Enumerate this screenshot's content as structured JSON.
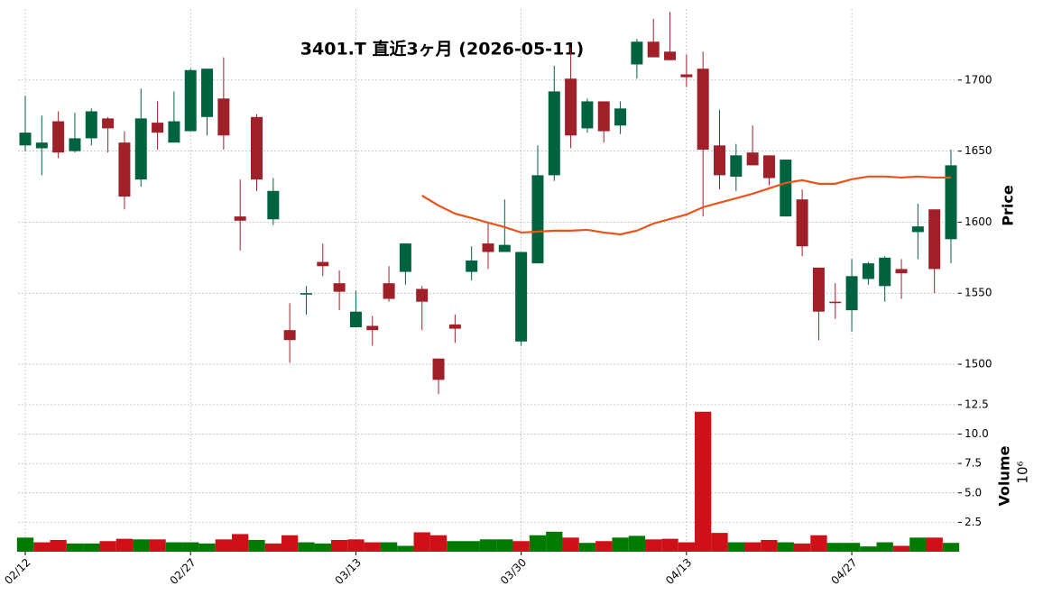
{
  "chart_data": [
    {
      "type": "candlestick",
      "title": "3401.T  直近3ヶ月 (2026-05-11)",
      "ylabel": "Price",
      "categories": [
        "02/12",
        null,
        null,
        null,
        null,
        null,
        null,
        null,
        null,
        null,
        "02/27",
        null,
        null,
        null,
        null,
        null,
        null,
        null,
        null,
        null,
        "03/13",
        null,
        null,
        null,
        null,
        null,
        null,
        null,
        null,
        null,
        "03/30",
        null,
        null,
        null,
        null,
        null,
        null,
        null,
        null,
        null,
        "04/13",
        null,
        null,
        null,
        null,
        null,
        null,
        null,
        null,
        null,
        "04/27",
        null,
        null,
        null,
        null,
        null,
        null
      ],
      "open": [
        1654,
        1652,
        1671,
        1650,
        1659,
        1673,
        1656,
        1630,
        1670,
        1656,
        1664,
        1674,
        1687,
        1604,
        1674,
        1602,
        1524,
        1549,
        1572,
        1557,
        1526,
        1527,
        1557,
        1565,
        1553,
        1504,
        1528,
        1565,
        1585,
        1579,
        1516,
        1571,
        1633,
        1701,
        1666,
        1685,
        1668,
        1711,
        1727,
        1720,
        1704,
        1708,
        1654,
        1632,
        1649,
        1647,
        1604,
        1616,
        1568,
        1544,
        1538,
        1560,
        1555,
        1567,
        1593,
        1609,
        1588
      ],
      "high": [
        1689,
        1675,
        1678,
        1677,
        1680,
        1674,
        1664,
        1694,
        1685,
        1692,
        1708,
        1708,
        1716,
        1630,
        1676,
        1631,
        1543,
        1555,
        1585,
        1566,
        1552,
        1534,
        1569,
        1585,
        1555,
        1504,
        1535,
        1583,
        1600,
        1616,
        1579,
        1654,
        1710,
        1723,
        1687,
        1685,
        1685,
        1729,
        1743,
        1748,
        1718,
        1720,
        1679,
        1655,
        1668,
        1647,
        1644,
        1623,
        1568,
        1557,
        1574,
        1572,
        1576,
        1574,
        1613,
        1609,
        1651
      ],
      "low": [
        1650,
        1633,
        1645,
        1649,
        1654,
        1649,
        1609,
        1625,
        1651,
        1656,
        1664,
        1661,
        1651,
        1580,
        1622,
        1598,
        1501,
        1535,
        1562,
        1538,
        1526,
        1513,
        1544,
        1556,
        1524,
        1479,
        1515,
        1559,
        1567,
        1579,
        1513,
        1571,
        1629,
        1652,
        1663,
        1656,
        1662,
        1701,
        1716,
        1714,
        1695,
        1604,
        1623,
        1622,
        1640,
        1626,
        1604,
        1576,
        1517,
        1532,
        1523,
        1556,
        1544,
        1546,
        1574,
        1550,
        1571
      ],
      "close": [
        1663,
        1656,
        1649,
        1659,
        1678,
        1666,
        1618,
        1673,
        1663,
        1671,
        1707,
        1708,
        1661,
        1601,
        1630,
        1622,
        1517,
        1550,
        1569,
        1551,
        1537,
        1524,
        1546,
        1585,
        1544,
        1489,
        1525,
        1573,
        1579,
        1584,
        1579,
        1633,
        1692,
        1661,
        1685,
        1664,
        1680,
        1727,
        1716,
        1714,
        1702,
        1651,
        1633,
        1647,
        1640,
        1631,
        1644,
        1583,
        1537,
        1543,
        1562,
        1571,
        1575,
        1564,
        1597,
        1567,
        1640
      ],
      "up_color": "#006340",
      "down_color": "#a0202a",
      "line": {
        "color": "#e8541a",
        "values": [
          null,
          null,
          null,
          null,
          null,
          null,
          null,
          null,
          null,
          null,
          null,
          null,
          null,
          null,
          null,
          null,
          null,
          null,
          null,
          null,
          null,
          null,
          null,
          null,
          1618.7,
          1611.7,
          1606,
          1602.9,
          1599.7,
          1596.5,
          1592.7,
          1593.3,
          1594,
          1594,
          1594.6,
          1592.7,
          1591.4,
          1594,
          1599,
          1602.2,
          1605.4,
          1610.5,
          1613.7,
          1616.8,
          1620,
          1623.8,
          1627.6,
          1629.5,
          1627,
          1627,
          1630.2,
          1632.1,
          1632.1,
          1631.4,
          1632.1,
          1631.4,
          1631.4
        ]
      },
      "ylim": [
        1474,
        1750
      ],
      "yticks": [
        1500,
        1550,
        1600,
        1650,
        1700
      ],
      "grid": true
    },
    {
      "type": "bar",
      "ylabel": "Volume",
      "offset_text": "10⁶",
      "values": [
        1.2,
        0.8,
        1.0,
        0.7,
        0.7,
        0.9,
        1.1,
        1.05,
        1.05,
        0.8,
        0.8,
        0.7,
        1.05,
        1.5,
        1.0,
        0.7,
        1.4,
        0.8,
        0.7,
        1.0,
        1.05,
        0.8,
        0.8,
        0.5,
        1.65,
        1.4,
        0.9,
        0.9,
        1.05,
        1.05,
        0.9,
        1.4,
        1.7,
        1.2,
        0.75,
        0.9,
        1.2,
        1.35,
        1.05,
        1.1,
        0.8,
        11.9,
        1.6,
        0.8,
        0.8,
        1.0,
        0.8,
        0.7,
        1.4,
        0.75,
        0.75,
        0.45,
        0.8,
        0.5,
        1.2,
        1.2,
        0.75
      ],
      "up_color": "#007a00",
      "down_color": "#d01018",
      "ylim": [
        0,
        12.8
      ],
      "yticks": [
        2.5,
        {
          "value": 5,
          "label": "5.0"
        },
        7.5,
        {
          "value": 10,
          "label": "10.0"
        },
        12.5
      ],
      "grid": true
    }
  ]
}
